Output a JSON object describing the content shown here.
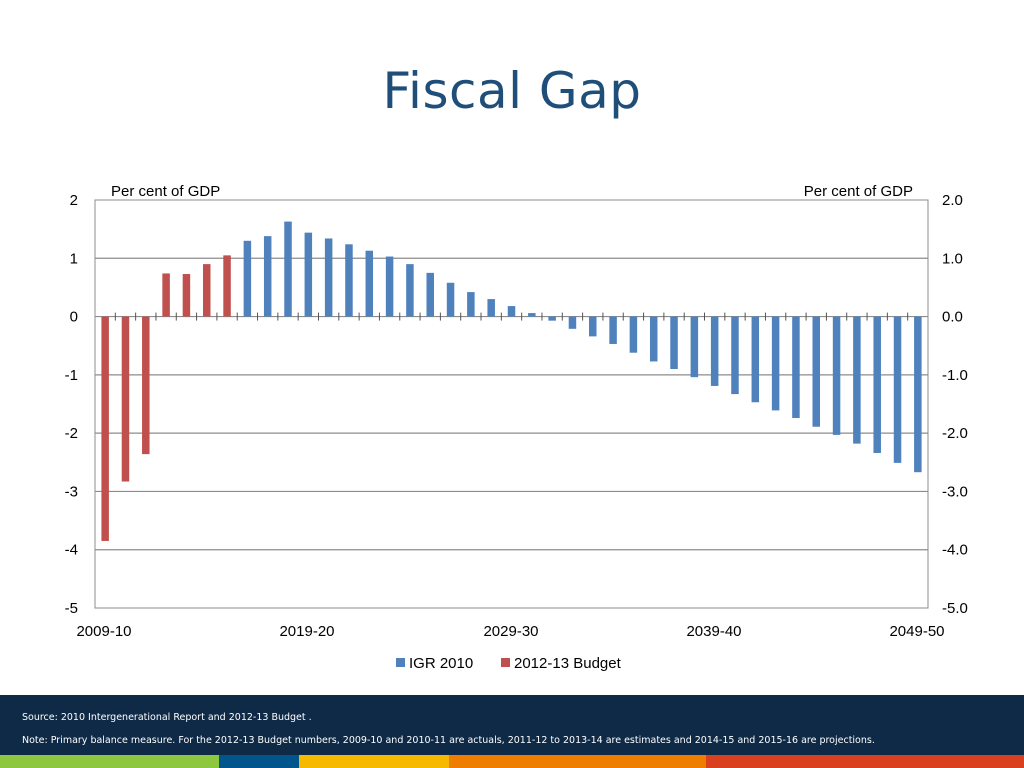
{
  "slide": {
    "title": "Fiscal Gap"
  },
  "footer": {
    "source": "Source: 2010 Intergenerational Report and 2012-13 Budget .",
    "note": "Note: Primary balance measure.  For the 2012-13 Budget numbers, 2009-10 and 2010-11 are actuals, 2011-12 to 2013-14 are estimates and 2014-15 and 2015-16 are projections."
  },
  "colors": {
    "igr": "#4f81bd",
    "budget": "#c0504d",
    "title": "#1f4e79",
    "footer_bg": "#0f2a47",
    "stripes": [
      "#8dc63f",
      "#00558c",
      "#f7b800",
      "#ef7d00",
      "#d9401f"
    ]
  },
  "chart_data": {
    "type": "bar",
    "left_axis_label": "Per cent of GDP",
    "right_axis_label": "Per cent of GDP",
    "ylim": [
      -5,
      2
    ],
    "left_ticks": [
      "2",
      "1",
      "0",
      "-1",
      "-2",
      "-3",
      "-4",
      "-5"
    ],
    "right_ticks": [
      "2.0",
      "1.0",
      "0.0",
      "-1.0",
      "-2.0",
      "-3.0",
      "-4.0",
      "-5.0"
    ],
    "x_tick_labels": [
      "2009-10",
      "2019-20",
      "2029-30",
      "2039-40",
      "2049-50"
    ],
    "grid": true,
    "legend_position": "bottom",
    "series": [
      {
        "name": "IGR 2010",
        "color": "#4f81bd",
        "start_year": "2016-17",
        "values": [
          1.3,
          1.38,
          1.63,
          1.44,
          1.34,
          1.24,
          1.13,
          1.03,
          0.9,
          0.75,
          0.58,
          0.42,
          0.3,
          0.18,
          0.06,
          -0.07,
          -0.21,
          -0.34,
          -0.47,
          -0.62,
          -0.77,
          -0.9,
          -1.04,
          -1.19,
          -1.33,
          -1.47,
          -1.61,
          -1.74,
          -1.89,
          -2.03,
          -2.18,
          -2.34,
          -2.51,
          -2.67
        ]
      },
      {
        "name": "2012-13 Budget",
        "color": "#c0504d",
        "start_year": "2009-10",
        "values": [
          -3.85,
          -2.83,
          -2.36,
          0.74,
          0.73,
          0.9,
          1.05
        ]
      }
    ]
  }
}
